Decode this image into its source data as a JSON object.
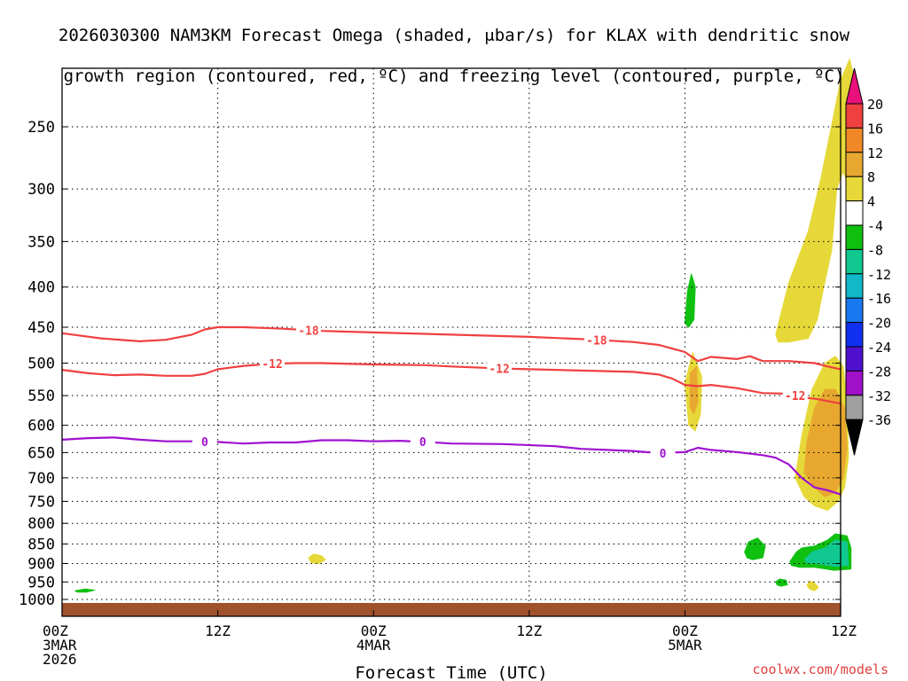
{
  "title_lines": [
    "2026030300 NAM3KM Forecast Omega (shaded, μbar/s) for KLAX with dendritic snow",
    "growth region (contoured, red, ºC) and freezing level (contoured, purple, ºC)"
  ],
  "credit": "coolwx.com/models",
  "colors": {
    "dendritic_contour": "#f04040",
    "freezing_contour": "#a010d0",
    "ground": "#a0522d"
  },
  "chart_data": {
    "type": "heatmap",
    "x_axis": {
      "label": "Forecast Time (UTC)",
      "hours": [
        0,
        12,
        24,
        36,
        48,
        60
      ],
      "tick_labels": [
        [
          "00Z",
          "3MAR",
          "2026"
        ],
        [
          "12Z"
        ],
        [
          "00Z",
          "4MAR"
        ],
        [
          "12Z"
        ],
        [
          "00Z",
          "5MAR"
        ],
        [
          "12Z"
        ]
      ],
      "range_hours": [
        0,
        60
      ]
    },
    "y_axis": {
      "label": "",
      "units": "hPa",
      "scale": "log-pressure, inverted",
      "ticks": [
        250,
        300,
        350,
        400,
        450,
        500,
        550,
        600,
        650,
        700,
        750,
        800,
        850,
        900,
        950,
        1000
      ],
      "range_hpa": [
        200,
        1020
      ],
      "grid": "dotted"
    },
    "colorbar": {
      "levels": [
        20,
        16,
        12,
        8,
        4,
        -4,
        -8,
        -12,
        -16,
        -20,
        -24,
        -28,
        -32,
        -36
      ],
      "bins": [
        {
          "lo": 20,
          "hi": null,
          "color": "#e8107a"
        },
        {
          "lo": 16,
          "hi": 20,
          "color": "#f04040"
        },
        {
          "lo": 12,
          "hi": 16,
          "color": "#f08828"
        },
        {
          "lo": 8,
          "hi": 12,
          "color": "#e8a830"
        },
        {
          "lo": 4,
          "hi": 8,
          "color": "#e6d838"
        },
        {
          "lo": -4,
          "hi": 4,
          "color": "#ffffff"
        },
        {
          "lo": -8,
          "hi": -4,
          "color": "#10c010"
        },
        {
          "lo": -12,
          "hi": -8,
          "color": "#10c890"
        },
        {
          "lo": -16,
          "hi": -12,
          "color": "#10b8c8"
        },
        {
          "lo": -20,
          "hi": -16,
          "color": "#1878f0"
        },
        {
          "lo": -24,
          "hi": -20,
          "color": "#1030f0"
        },
        {
          "lo": -28,
          "hi": -24,
          "color": "#5010d0"
        },
        {
          "lo": -32,
          "hi": -28,
          "color": "#a010c8"
        },
        {
          "lo": -36,
          "hi": -32,
          "color": "#a0a0a0"
        },
        {
          "lo": null,
          "hi": -36,
          "color": "#000000"
        }
      ]
    },
    "omega_regions": [
      {
        "value": 6,
        "points": [
          [
            55.0,
            460
          ],
          [
            56.0,
            395
          ],
          [
            57.5,
            340
          ],
          [
            58.5,
            290
          ],
          [
            59.5,
            240
          ],
          [
            60.0,
            218
          ],
          [
            60.7,
            205
          ],
          [
            61.3,
            225
          ],
          [
            61.0,
            260
          ],
          [
            60.7,
            300
          ],
          [
            60.2,
            285
          ],
          [
            59.7,
            300
          ],
          [
            59.3,
            360
          ],
          [
            58.7,
            400
          ],
          [
            58.2,
            440
          ],
          [
            57.5,
            465
          ],
          [
            56.0,
            470
          ],
          [
            55.2,
            470
          ]
        ]
      },
      {
        "value": 6,
        "points": [
          [
            48.3,
            600
          ],
          [
            48.0,
            530
          ],
          [
            48.6,
            485
          ],
          [
            49.3,
            520
          ],
          [
            49.2,
            580
          ],
          [
            48.8,
            610
          ]
        ]
      },
      {
        "value": 10,
        "points": [
          [
            48.4,
            570
          ],
          [
            48.4,
            515
          ],
          [
            48.9,
            505
          ],
          [
            49.0,
            560
          ],
          [
            48.7,
            580
          ]
        ]
      },
      {
        "value": 6,
        "points": [
          [
            56.5,
            700
          ],
          [
            57.0,
            620
          ],
          [
            57.8,
            540
          ],
          [
            58.8,
            500
          ],
          [
            59.6,
            490
          ],
          [
            60.2,
            505
          ],
          [
            60.5,
            560
          ],
          [
            60.6,
            660
          ],
          [
            60.3,
            720
          ],
          [
            59.8,
            750
          ],
          [
            59.0,
            770
          ],
          [
            58.0,
            760
          ],
          [
            57.2,
            740
          ]
        ]
      },
      {
        "value": 10,
        "points": [
          [
            57.2,
            690
          ],
          [
            57.4,
            630
          ],
          [
            58.0,
            570
          ],
          [
            58.8,
            540
          ],
          [
            59.6,
            540
          ],
          [
            60.3,
            570
          ],
          [
            60.5,
            640
          ],
          [
            60.2,
            700
          ],
          [
            59.6,
            730
          ],
          [
            58.8,
            740
          ],
          [
            58.0,
            720
          ]
        ]
      },
      {
        "value": 6,
        "points": [
          [
            19.0,
            885
          ],
          [
            19.4,
            875
          ],
          [
            20.0,
            880
          ],
          [
            20.3,
            890
          ],
          [
            19.8,
            900
          ],
          [
            19.2,
            898
          ]
        ]
      },
      {
        "value": 6,
        "points": [
          [
            57.4,
            960
          ],
          [
            57.6,
            948
          ],
          [
            57.9,
            950
          ],
          [
            58.3,
            965
          ],
          [
            58.0,
            975
          ],
          [
            57.6,
            970
          ]
        ]
      },
      {
        "value": -6,
        "points": [
          [
            48.0,
            445
          ],
          [
            48.2,
            405
          ],
          [
            48.5,
            385
          ],
          [
            48.8,
            400
          ],
          [
            48.7,
            440
          ],
          [
            48.3,
            450
          ]
        ]
      },
      {
        "value": -6,
        "points": [
          [
            52.6,
            870
          ],
          [
            52.9,
            845
          ],
          [
            53.6,
            835
          ],
          [
            54.2,
            855
          ],
          [
            54.0,
            885
          ],
          [
            53.2,
            890
          ],
          [
            52.8,
            885
          ]
        ]
      },
      {
        "value": -6,
        "points": [
          [
            56.1,
            895
          ],
          [
            56.6,
            870
          ],
          [
            57.0,
            860
          ],
          [
            58.0,
            855
          ],
          [
            59.0,
            840
          ],
          [
            59.6,
            825
          ],
          [
            60.5,
            830
          ],
          [
            60.8,
            860
          ],
          [
            60.8,
            915
          ],
          [
            59.5,
            918
          ],
          [
            58.0,
            910
          ],
          [
            56.8,
            910
          ],
          [
            56.2,
            905
          ]
        ]
      },
      {
        "value": -10,
        "points": [
          [
            57.2,
            890
          ],
          [
            57.8,
            870
          ],
          [
            58.8,
            860
          ],
          [
            59.6,
            840
          ],
          [
            60.5,
            845
          ],
          [
            60.6,
            905
          ],
          [
            59.6,
            908
          ],
          [
            58.2,
            900
          ],
          [
            57.4,
            898
          ]
        ]
      },
      {
        "value": -6,
        "points": [
          [
            55.0,
            950
          ],
          [
            55.3,
            942
          ],
          [
            55.8,
            945
          ],
          [
            55.9,
            958
          ],
          [
            55.4,
            962
          ],
          [
            55.1,
            958
          ]
        ]
      },
      {
        "value": -6,
        "points": [
          [
            1.0,
            975
          ],
          [
            1.8,
            970
          ],
          [
            2.5,
            973
          ],
          [
            1.9,
            979
          ],
          [
            1.2,
            979
          ]
        ]
      }
    ],
    "contours": [
      {
        "series": "-18",
        "color": "#f04040",
        "labels": [
          {
            "hours": 19.0,
            "text": "-18"
          },
          {
            "hours": 41.2,
            "text": "-18"
          }
        ],
        "points": [
          [
            0,
            458
          ],
          [
            3,
            465
          ],
          [
            6,
            469
          ],
          [
            8,
            467
          ],
          [
            10,
            460
          ],
          [
            11,
            453
          ],
          [
            12,
            450
          ],
          [
            14,
            450
          ],
          [
            17,
            452
          ],
          [
            20,
            455
          ],
          [
            24,
            457
          ],
          [
            30,
            460
          ],
          [
            36,
            463
          ],
          [
            40,
            466
          ],
          [
            44,
            470
          ],
          [
            46,
            474
          ],
          [
            48,
            484
          ],
          [
            49,
            497
          ],
          [
            50,
            491
          ],
          [
            52,
            494
          ],
          [
            53,
            490
          ],
          [
            54,
            497
          ],
          [
            56,
            497
          ],
          [
            58,
            500
          ],
          [
            59,
            505
          ],
          [
            60,
            509
          ]
        ]
      },
      {
        "series": "-12",
        "color": "#f04040",
        "labels": [
          {
            "hours": 16.2,
            "text": "-12"
          },
          {
            "hours": 33.7,
            "text": "-12"
          },
          {
            "hours": 56.5,
            "text": "-12"
          }
        ],
        "points": [
          [
            0,
            510
          ],
          [
            2,
            515
          ],
          [
            4,
            518
          ],
          [
            6,
            517
          ],
          [
            8,
            519
          ],
          [
            10,
            519
          ],
          [
            11,
            516
          ],
          [
            12,
            509
          ],
          [
            14,
            504
          ],
          [
            16,
            501
          ],
          [
            18,
            500
          ],
          [
            20,
            500
          ],
          [
            24,
            502
          ],
          [
            28,
            503
          ],
          [
            30,
            505
          ],
          [
            34,
            508
          ],
          [
            40,
            511
          ],
          [
            44,
            513
          ],
          [
            46,
            517
          ],
          [
            47,
            523
          ],
          [
            48,
            533
          ],
          [
            49,
            535
          ],
          [
            50,
            533
          ],
          [
            52,
            538
          ],
          [
            54,
            546
          ],
          [
            56,
            547
          ],
          [
            57,
            553
          ],
          [
            58,
            555
          ],
          [
            60,
            563
          ]
        ]
      },
      {
        "series": "0",
        "color": "#a010d0",
        "labels": [
          {
            "hours": 11.0,
            "text": "0"
          },
          {
            "hours": 27.8,
            "text": "0"
          },
          {
            "hours": 46.3,
            "text": "0"
          }
        ],
        "points": [
          [
            0,
            626
          ],
          [
            2,
            623
          ],
          [
            4,
            622
          ],
          [
            6,
            626
          ],
          [
            8,
            629
          ],
          [
            10,
            629
          ],
          [
            12,
            630
          ],
          [
            14,
            633
          ],
          [
            16,
            631
          ],
          [
            18,
            631
          ],
          [
            20,
            627
          ],
          [
            22,
            627
          ],
          [
            24,
            629
          ],
          [
            26,
            628
          ],
          [
            28,
            630
          ],
          [
            30,
            633
          ],
          [
            34,
            634
          ],
          [
            38,
            638
          ],
          [
            40,
            643
          ],
          [
            42,
            645
          ],
          [
            44,
            647
          ],
          [
            46,
            651
          ],
          [
            48,
            649
          ],
          [
            49,
            641
          ],
          [
            50,
            645
          ],
          [
            52,
            649
          ],
          [
            54,
            655
          ],
          [
            55,
            660
          ],
          [
            56,
            673
          ],
          [
            57,
            700
          ],
          [
            58,
            720
          ],
          [
            59,
            726
          ],
          [
            60,
            735
          ]
        ]
      }
    ]
  }
}
